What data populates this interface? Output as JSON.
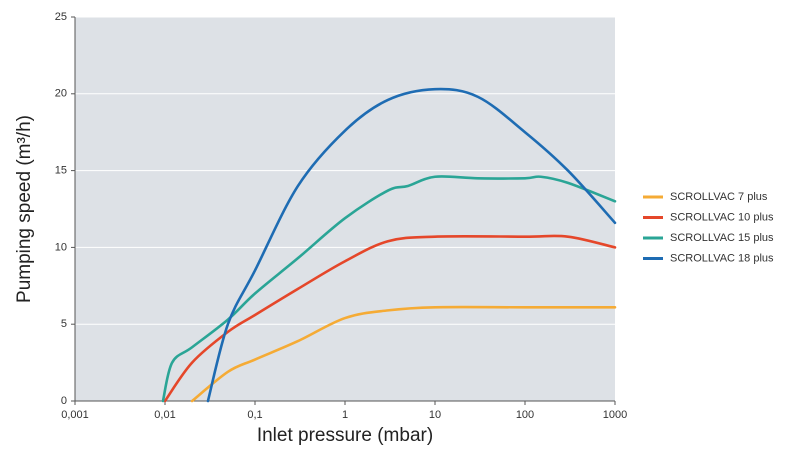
{
  "chart_data": {
    "type": "line",
    "x_scale": "log",
    "grid": true,
    "legend": "right",
    "xlabel": "Inlet pressure (mbar)",
    "ylabel": "Pumping speed (m³/h)",
    "xlim": [
      0.001,
      1000
    ],
    "xticks": [
      {
        "value": 0.001,
        "label": "0,001"
      },
      {
        "value": 0.01,
        "label": "0,01"
      },
      {
        "value": 0.1,
        "label": "0,1"
      },
      1,
      10,
      100,
      1000
    ],
    "ylim": [
      0,
      25
    ],
    "yticks": [
      0,
      5,
      10,
      15,
      20,
      25
    ],
    "series": [
      {
        "name": "SCROLLVAC 7 plus",
        "color": "#f5ab35",
        "x": [
          0.02,
          0.05,
          0.1,
          0.3,
          1,
          3,
          10,
          100,
          1000
        ],
        "values": [
          0,
          1.9,
          2.7,
          3.9,
          5.4,
          5.9,
          6.1,
          6.1,
          6.1
        ]
      },
      {
        "name": "SCROLLVAC 10 plus",
        "color": "#e5472a",
        "x": [
          0.01,
          0.02,
          0.05,
          0.1,
          0.3,
          1,
          3,
          10,
          100,
          300,
          1000
        ],
        "values": [
          0,
          2.5,
          4.5,
          5.6,
          7.3,
          9.1,
          10.4,
          10.7,
          10.7,
          10.7,
          10.0
        ]
      },
      {
        "name": "SCROLLVAC 15 plus",
        "color": "#2aa596",
        "x": [
          0.0095,
          0.012,
          0.02,
          0.05,
          0.1,
          0.3,
          1,
          3,
          5,
          10,
          30,
          100,
          150,
          300,
          1000
        ],
        "values": [
          0,
          2.5,
          3.5,
          5.3,
          7.0,
          9.3,
          11.9,
          13.7,
          14.0,
          14.6,
          14.5,
          14.5,
          14.6,
          14.2,
          13.0
        ]
      },
      {
        "name": "SCROLLVAC 18 plus",
        "color": "#1e6cb3",
        "x": [
          0.03,
          0.05,
          0.1,
          0.3,
          1,
          3,
          10,
          30,
          100,
          300,
          1000
        ],
        "values": [
          0,
          5.0,
          8.5,
          14.0,
          17.6,
          19.6,
          20.3,
          19.8,
          17.5,
          15.0,
          11.6
        ]
      }
    ]
  }
}
